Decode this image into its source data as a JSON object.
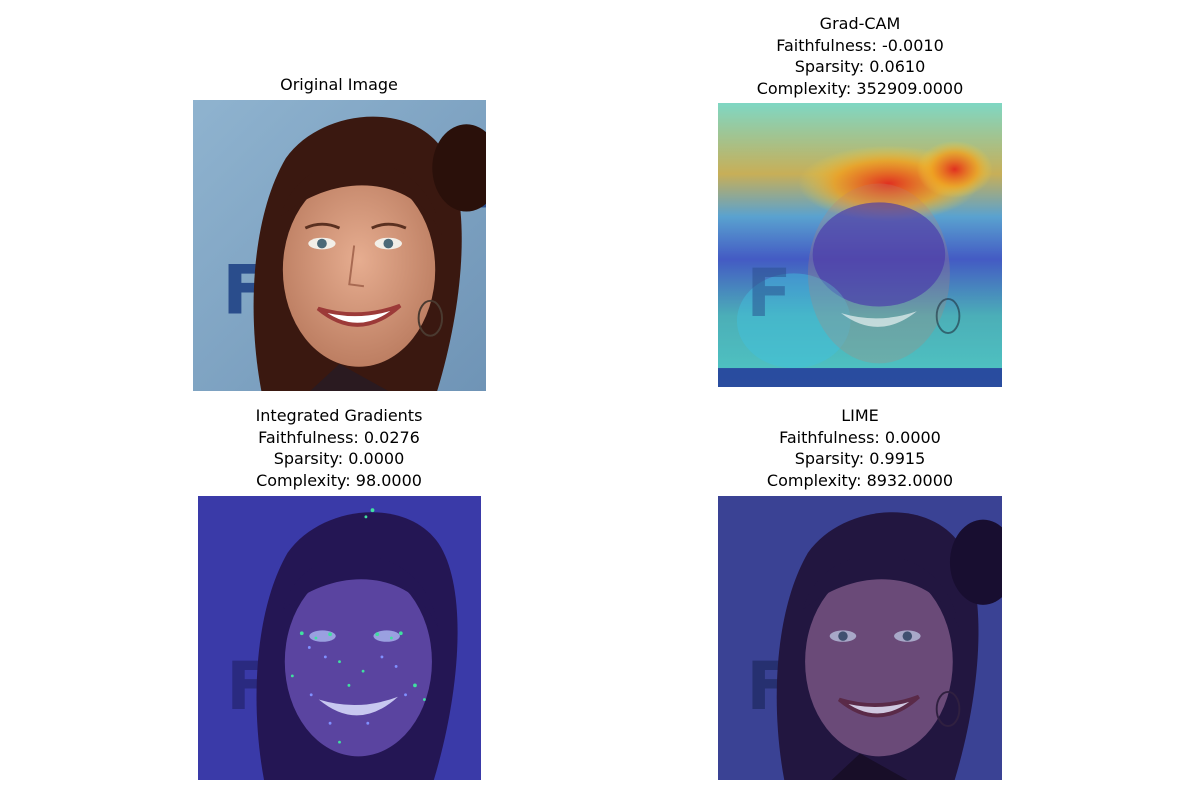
{
  "panels": [
    {
      "title_lines": [
        "Original Image"
      ],
      "image": "face-photo",
      "overlay": "none"
    },
    {
      "title_lines": [
        "Grad-CAM",
        "Faithfulness: -0.0010",
        "Sparsity: 0.0610",
        "Complexity: 352909.0000"
      ],
      "image": "face-photo",
      "overlay": "jet-heatmap"
    },
    {
      "title_lines": [
        "Integrated Gradients",
        "Faithfulness: 0.0276",
        "Sparsity: 0.0000",
        "Complexity: 98.0000"
      ],
      "image": "face-photo",
      "overlay": "blue-tint-with-speckles"
    },
    {
      "title_lines": [
        "LIME",
        "Faithfulness: 0.0000",
        "Sparsity: 0.9915",
        "Complexity: 8932.0000"
      ],
      "image": "face-photo",
      "overlay": "dark-blue-tint"
    }
  ],
  "colors": {
    "background": "#ffffff",
    "backdrop": "#8fb3cf",
    "hair": "#3a1810",
    "skin": "#d89a7e",
    "overlay_blue": "#1a1ab0",
    "overlay_navy": "#14125e"
  }
}
